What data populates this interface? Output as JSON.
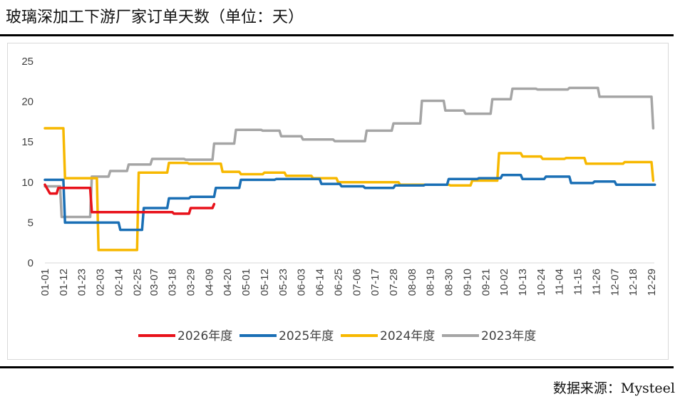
{
  "title": "玻璃深加工下游厂家订单天数（单位：天）",
  "source": "数据来源：Mysteel",
  "chart_data": {
    "type": "line",
    "title": "玻璃深加工下游厂家订单天数（单位：天）",
    "ylim": [
      0,
      25
    ],
    "yticks": [
      0,
      5,
      10,
      15,
      20,
      25
    ],
    "x_ticks": [
      "01-01",
      "01-12",
      "01-23",
      "02-03",
      "02-14",
      "02-25",
      "03-07",
      "03-18",
      "03-29",
      "04-09",
      "04-20",
      "05-01",
      "05-12",
      "05-23",
      "06-03",
      "06-14",
      "06-25",
      "07-06",
      "07-17",
      "07-28",
      "08-08",
      "08-19",
      "08-30",
      "09-10",
      "09-21",
      "10-02",
      "10-13",
      "10-24",
      "11-04",
      "11-15",
      "11-26",
      "12-07",
      "12-18",
      "12-29"
    ],
    "x_unit": "day-of-year, shown as MM-DD",
    "grid": false,
    "legend_position": "bottom",
    "series": [
      {
        "name": "2026年度",
        "color": "#e8111a",
        "points": [
          [
            "01-01",
            9.7
          ],
          [
            "01-04",
            8.6
          ],
          [
            "01-08",
            8.6
          ],
          [
            "01-09",
            9.3
          ],
          [
            "01-28",
            9.3
          ],
          [
            "01-29",
            6.3
          ],
          [
            "03-18",
            6.3
          ],
          [
            "03-19",
            6.1
          ],
          [
            "03-28",
            6.1
          ],
          [
            "03-29",
            6.8
          ],
          [
            "04-11",
            6.8
          ],
          [
            "04-12",
            7.3
          ]
        ]
      },
      {
        "name": "2025年度",
        "color": "#1a6fb5",
        "points": [
          [
            "01-01",
            10.3
          ],
          [
            "01-12",
            10.3
          ],
          [
            "01-13",
            5.0
          ],
          [
            "02-14",
            5.0
          ],
          [
            "02-15",
            4.1
          ],
          [
            "02-28",
            4.1
          ],
          [
            "03-01",
            6.8
          ],
          [
            "03-15",
            6.8
          ],
          [
            "03-16",
            8.0
          ],
          [
            "03-28",
            8.0
          ],
          [
            "03-29",
            8.2
          ],
          [
            "04-12",
            8.2
          ],
          [
            "04-13",
            9.3
          ],
          [
            "04-27",
            9.3
          ],
          [
            "04-28",
            10.3
          ],
          [
            "05-18",
            10.3
          ],
          [
            "05-19",
            10.4
          ],
          [
            "06-14",
            10.4
          ],
          [
            "06-15",
            9.8
          ],
          [
            "06-26",
            9.8
          ],
          [
            "06-27",
            9.5
          ],
          [
            "07-10",
            9.5
          ],
          [
            "07-11",
            9.3
          ],
          [
            "07-28",
            9.3
          ],
          [
            "07-29",
            9.6
          ],
          [
            "08-15",
            9.6
          ],
          [
            "08-16",
            9.7
          ],
          [
            "08-29",
            9.7
          ],
          [
            "08-30",
            10.4
          ],
          [
            "09-16",
            10.4
          ],
          [
            "09-17",
            10.5
          ],
          [
            "09-30",
            10.5
          ],
          [
            "10-01",
            10.9
          ],
          [
            "10-12",
            10.9
          ],
          [
            "10-13",
            10.4
          ],
          [
            "10-26",
            10.4
          ],
          [
            "10-27",
            10.7
          ],
          [
            "11-10",
            10.7
          ],
          [
            "11-11",
            9.9
          ],
          [
            "11-24",
            9.9
          ],
          [
            "11-25",
            10.1
          ],
          [
            "12-07",
            10.1
          ],
          [
            "12-08",
            9.7
          ],
          [
            "12-31",
            9.7
          ]
        ]
      },
      {
        "name": "2024年度",
        "color": "#f7b800",
        "points": [
          [
            "01-01",
            16.7
          ],
          [
            "01-12",
            16.7
          ],
          [
            "01-13",
            10.5
          ],
          [
            "02-01",
            10.5
          ],
          [
            "02-02",
            1.6
          ],
          [
            "02-25",
            1.6
          ],
          [
            "02-26",
            11.2
          ],
          [
            "03-15",
            11.2
          ],
          [
            "03-16",
            12.4
          ],
          [
            "03-27",
            12.4
          ],
          [
            "03-28",
            12.3
          ],
          [
            "04-16",
            12.3
          ],
          [
            "04-17",
            11.3
          ],
          [
            "04-27",
            11.3
          ],
          [
            "04-28",
            11.0
          ],
          [
            "05-11",
            11.0
          ],
          [
            "05-12",
            11.2
          ],
          [
            "05-24",
            11.2
          ],
          [
            "05-25",
            10.8
          ],
          [
            "06-09",
            10.8
          ],
          [
            "06-10",
            10.5
          ],
          [
            "06-24",
            10.5
          ],
          [
            "06-25",
            10.0
          ],
          [
            "07-31",
            10.0
          ],
          [
            "08-01",
            9.7
          ],
          [
            "08-30",
            9.7
          ],
          [
            "08-31",
            9.6
          ],
          [
            "09-12",
            9.6
          ],
          [
            "09-13",
            10.2
          ],
          [
            "09-28",
            10.2
          ],
          [
            "09-29",
            13.6
          ],
          [
            "10-12",
            13.6
          ],
          [
            "10-13",
            13.2
          ],
          [
            "10-24",
            13.2
          ],
          [
            "10-25",
            12.9
          ],
          [
            "11-07",
            12.9
          ],
          [
            "11-08",
            13.0
          ],
          [
            "11-19",
            13.0
          ],
          [
            "11-20",
            12.3
          ],
          [
            "12-12",
            12.3
          ],
          [
            "12-13",
            12.5
          ],
          [
            "12-29",
            12.5
          ],
          [
            "12-30",
            10.2
          ]
        ]
      },
      {
        "name": "2023年度",
        "color": "#a5a5a5",
        "points": [
          [
            "01-01",
            9.5
          ],
          [
            "01-10",
            9.5
          ],
          [
            "01-11",
            5.7
          ],
          [
            "01-28",
            5.7
          ],
          [
            "01-29",
            10.7
          ],
          [
            "02-08",
            10.7
          ],
          [
            "02-09",
            11.4
          ],
          [
            "02-19",
            11.4
          ],
          [
            "02-20",
            12.2
          ],
          [
            "03-05",
            12.2
          ],
          [
            "03-06",
            12.9
          ],
          [
            "03-25",
            12.9
          ],
          [
            "03-26",
            12.8
          ],
          [
            "04-11",
            12.8
          ],
          [
            "04-12",
            14.8
          ],
          [
            "04-24",
            14.8
          ],
          [
            "04-25",
            16.5
          ],
          [
            "05-10",
            16.5
          ],
          [
            "05-11",
            16.4
          ],
          [
            "05-21",
            16.4
          ],
          [
            "05-22",
            15.7
          ],
          [
            "06-03",
            15.7
          ],
          [
            "06-04",
            15.3
          ],
          [
            "06-22",
            15.3
          ],
          [
            "06-23",
            15.1
          ],
          [
            "07-11",
            15.1
          ],
          [
            "07-12",
            16.4
          ],
          [
            "07-27",
            16.4
          ],
          [
            "07-28",
            17.3
          ],
          [
            "08-13",
            17.3
          ],
          [
            "08-14",
            20.1
          ],
          [
            "08-27",
            20.1
          ],
          [
            "08-28",
            18.9
          ],
          [
            "09-08",
            18.9
          ],
          [
            "09-09",
            18.5
          ],
          [
            "09-24",
            18.5
          ],
          [
            "09-25",
            20.3
          ],
          [
            "10-06",
            20.3
          ],
          [
            "10-07",
            21.6
          ],
          [
            "10-21",
            21.6
          ],
          [
            "10-22",
            21.5
          ],
          [
            "11-09",
            21.5
          ],
          [
            "11-10",
            21.7
          ],
          [
            "11-27",
            21.7
          ],
          [
            "11-28",
            20.6
          ],
          [
            "12-23",
            20.6
          ],
          [
            "12-29",
            20.6
          ],
          [
            "12-30",
            16.7
          ]
        ]
      }
    ]
  }
}
